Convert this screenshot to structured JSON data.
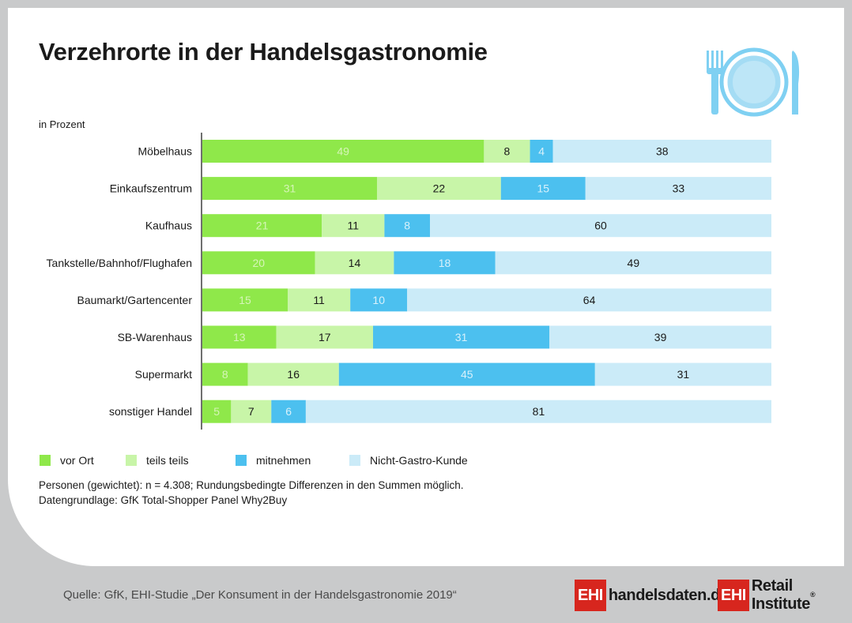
{
  "title": "Verzehrorte in der Handelsgastronomie",
  "chart_data": {
    "type": "bar",
    "orientation": "horizontal",
    "stacked": true,
    "unit_label": "in Prozent",
    "categories": [
      "Möbelhaus",
      "Einkaufszentrum",
      "Kaufhaus",
      "Tankstelle/Bahnhof/Flughafen",
      "Baumarkt/Gartencenter",
      "SB-Warenhaus",
      "Supermarkt",
      "sonstiger Handel"
    ],
    "series": [
      {
        "name": "vor Ort",
        "color": "#8fe84a",
        "label_color": "#d6f5b8",
        "values": [
          49,
          31,
          21,
          20,
          15,
          13,
          8,
          5
        ]
      },
      {
        "name": "teils teils",
        "color": "#c8f5a8",
        "label_color": "#1a1a1a",
        "values": [
          8,
          22,
          11,
          14,
          11,
          17,
          16,
          7
        ]
      },
      {
        "name": "mitnehmen",
        "color": "#4cc0ef",
        "label_color": "#d8f1fb",
        "values": [
          4,
          15,
          8,
          18,
          10,
          31,
          45,
          6
        ]
      },
      {
        "name": "Nicht-Gastro-Kunde",
        "color": "#cbebf8",
        "label_color": "#1a1a1a",
        "values": [
          38,
          33,
          60,
          49,
          64,
          39,
          31,
          81
        ]
      }
    ],
    "xlim": [
      0,
      100
    ],
    "grid": false,
    "legend_position": "bottom-left"
  },
  "notes": [
    "Personen (gewichtet): n = 4.308; Rundungsbedingte Differenzen in den Summen möglich.",
    "Datengrundlage: GfK Total-Shopper Panel Why2Buy"
  ],
  "source": "Quelle: GfK, EHI-Studie „Der Konsument in der Handelsgastronomie 2019“",
  "logos": [
    {
      "box": "EHI",
      "text": "handelsdaten.de"
    },
    {
      "box": "EHI",
      "text": "Retail Institute",
      "mark": "®"
    }
  ],
  "icon": "plate-cutlery-icon"
}
